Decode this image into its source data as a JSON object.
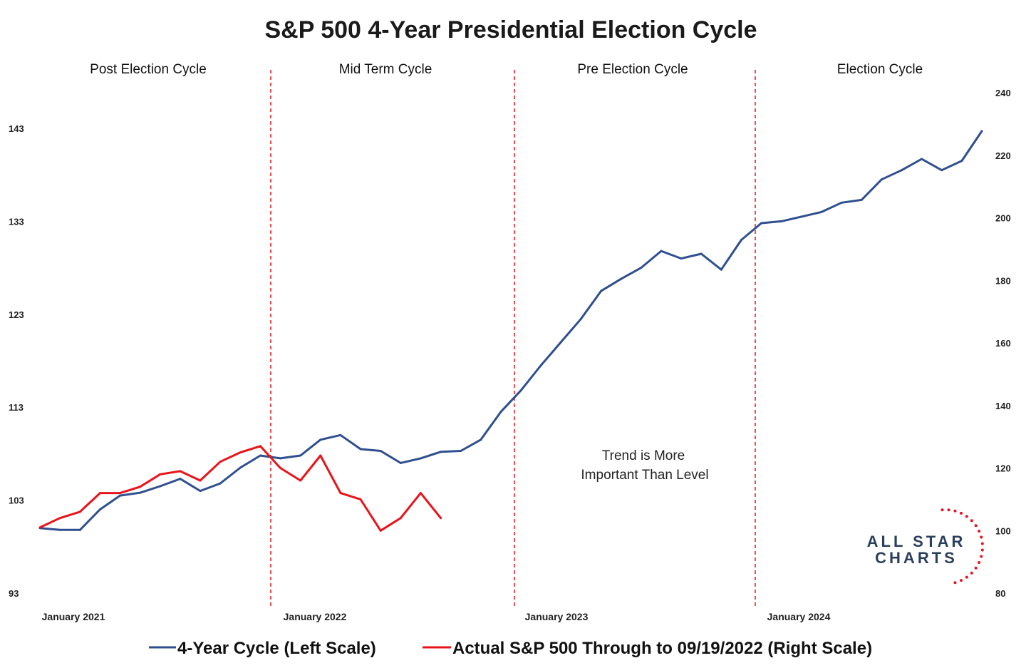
{
  "chart_data": {
    "type": "line",
    "title": "S&P 500 4-Year Presidential Election Cycle",
    "phases": [
      "Post Election Cycle",
      "Mid Term Cycle",
      "Pre Election Cycle",
      "Election Cycle"
    ],
    "x_ticks": [
      "January 2021",
      "January 2022",
      "January 2023",
      "January 2024"
    ],
    "x_range": [
      "2021-01",
      "2024-12"
    ],
    "y_left": {
      "ticks": [
        93,
        103,
        113,
        123,
        133,
        143
      ],
      "range": [
        93,
        143
      ]
    },
    "y_right": {
      "ticks": [
        80,
        100,
        120,
        140,
        160,
        180,
        200,
        220,
        240
      ],
      "range": [
        80,
        240
      ]
    },
    "annotation": [
      "Trend is More",
      "Important Than Level"
    ],
    "grid": false,
    "legend_position": "bottom",
    "series": [
      {
        "name": "4-Year Cycle (Left Scale)",
        "axis": "left",
        "color": "#2f4f8f",
        "x": [
          "2021-01",
          "2021-02",
          "2021-03",
          "2021-04",
          "2021-05",
          "2021-06",
          "2021-07",
          "2021-08",
          "2021-09",
          "2021-10",
          "2021-11",
          "2021-12",
          "2022-01",
          "2022-02",
          "2022-03",
          "2022-04",
          "2022-05",
          "2022-06",
          "2022-07",
          "2022-08",
          "2022-09",
          "2022-10",
          "2022-11",
          "2022-12",
          "2023-01",
          "2023-02",
          "2023-03",
          "2023-04",
          "2023-05",
          "2023-06",
          "2023-07",
          "2023-08",
          "2023-09",
          "2023-10",
          "2023-11",
          "2023-12",
          "2024-01",
          "2024-02",
          "2024-03",
          "2024-04",
          "2024-05",
          "2024-06",
          "2024-07",
          "2024-08",
          "2024-09",
          "2024-10",
          "2024-11",
          "2024-12"
        ],
        "y": [
          100.0,
          99.8,
          99.8,
          102.0,
          103.5,
          103.8,
          104.5,
          105.3,
          104.0,
          104.8,
          106.5,
          107.8,
          107.5,
          107.8,
          109.5,
          110.0,
          108.5,
          108.3,
          107.0,
          107.5,
          108.2,
          108.3,
          109.5,
          112.5,
          114.8,
          117.5,
          120.0,
          122.5,
          125.5,
          126.8,
          128.0,
          129.8,
          129.0,
          129.5,
          127.8,
          131.0,
          132.8,
          133.0,
          133.5,
          134.0,
          135.0,
          135.3,
          137.5,
          138.5,
          139.7,
          138.5,
          139.5,
          142.7
        ]
      },
      {
        "name": "Actual S&P 500 Through to 09/19/2022 (Right Scale)",
        "axis": "right",
        "color": "#e8141b",
        "x": [
          "2021-01",
          "2021-02",
          "2021-03",
          "2021-04",
          "2021-05",
          "2021-06",
          "2021-07",
          "2021-08",
          "2021-09",
          "2021-10",
          "2021-11",
          "2021-12",
          "2022-01",
          "2022-02",
          "2022-03",
          "2022-04",
          "2022-05",
          "2022-06",
          "2022-07",
          "2022-08",
          "2022-09"
        ],
        "y": [
          101,
          104,
          106,
          112,
          112,
          114,
          118,
          119,
          116,
          122,
          125,
          127,
          120,
          116,
          124,
          112,
          110,
          100,
          104,
          112,
          104
        ]
      }
    ]
  },
  "logo": {
    "line1": "ALL STAR",
    "line2": "CHARTS"
  }
}
